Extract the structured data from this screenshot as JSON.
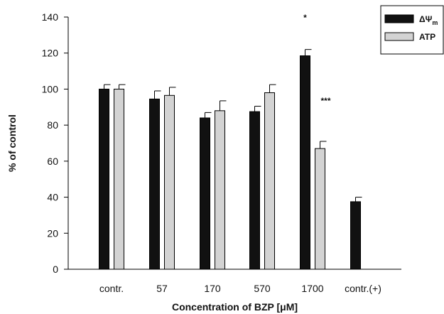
{
  "chart_data": {
    "type": "bar",
    "categories": [
      "contr.",
      "57",
      "170",
      "570",
      "1700",
      "contr.(+)"
    ],
    "series": [
      {
        "name": "ΔΨm",
        "color": "#111111",
        "values": [
          100,
          94.5,
          84,
          87.5,
          118.5,
          37.5
        ],
        "errors": [
          2.5,
          4.5,
          3,
          3,
          3.5,
          2.5
        ]
      },
      {
        "name": "ATP",
        "color": "#d3d3d3",
        "values": [
          100,
          96.5,
          88,
          98,
          67,
          null
        ],
        "errors": [
          2.5,
          4.5,
          5.5,
          4.5,
          4,
          null
        ]
      }
    ],
    "annotations": [
      {
        "category": "1700",
        "series": "ΔΨm",
        "text": "*"
      },
      {
        "category": "1700",
        "series": "ATP",
        "text": "***"
      }
    ],
    "xlabel": "Concentration of BZP [μM]",
    "ylabel": "% of control",
    "ylim": [
      0,
      140
    ],
    "yticks": [
      0,
      20,
      40,
      60,
      80,
      100,
      120,
      140
    ],
    "grid": false,
    "legend_position": "top-right"
  }
}
